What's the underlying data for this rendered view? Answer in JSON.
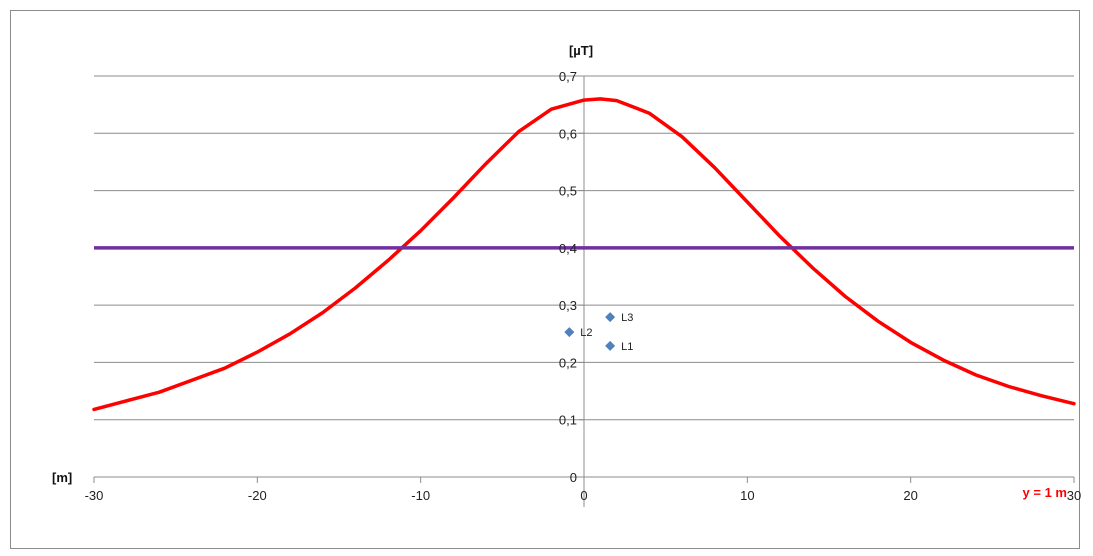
{
  "chart_data": {
    "type": "line",
    "title": "",
    "xlabel": "[m]",
    "ylabel": "[µT]",
    "xlim": [
      -30,
      30
    ],
    "ylim": [
      0,
      0.7
    ],
    "x_ticks": [
      -30,
      -20,
      -10,
      0,
      10,
      20,
      30
    ],
    "x_tick_labels": [
      "-30",
      "-20",
      "-10",
      "0",
      "10",
      "20",
      "30"
    ],
    "y_ticks": [
      0,
      0.1,
      0.2,
      0.3,
      0.4,
      0.5,
      0.6,
      0.7
    ],
    "y_tick_labels": [
      "0",
      "0,1",
      "0,2",
      "0,3",
      "0,4",
      "0,5",
      "0,6",
      "0,7"
    ],
    "grid": "horizontal",
    "annotation": "y = 1 m",
    "series": [
      {
        "type": "line",
        "color": "#ff0000",
        "x": [
          -30,
          -26,
          -22,
          -20,
          -18,
          -16,
          -14,
          -12,
          -10,
          -8,
          -6,
          -4,
          -2,
          0,
          1,
          2,
          4,
          6,
          8,
          10,
          12,
          14,
          16,
          18,
          20,
          22,
          24,
          26,
          28,
          30
        ],
        "y": [
          0.118,
          0.148,
          0.19,
          0.218,
          0.25,
          0.287,
          0.33,
          0.378,
          0.43,
          0.487,
          0.547,
          0.603,
          0.642,
          0.658,
          0.66,
          0.657,
          0.635,
          0.594,
          0.54,
          0.48,
          0.42,
          0.365,
          0.315,
          0.272,
          0.235,
          0.204,
          0.178,
          0.158,
          0.142,
          0.128
        ]
      },
      {
        "type": "line",
        "color": "#7030a0",
        "x": [
          -30,
          30
        ],
        "y": [
          0.4,
          0.4
        ]
      },
      {
        "type": "scatter",
        "color": "#4f81bd",
        "points": [
          {
            "label": "L1",
            "x": 1.6,
            "y": 0.229
          },
          {
            "label": "L2",
            "x": -0.9,
            "y": 0.253
          },
          {
            "label": "L3",
            "x": 1.6,
            "y": 0.279
          }
        ]
      }
    ]
  }
}
